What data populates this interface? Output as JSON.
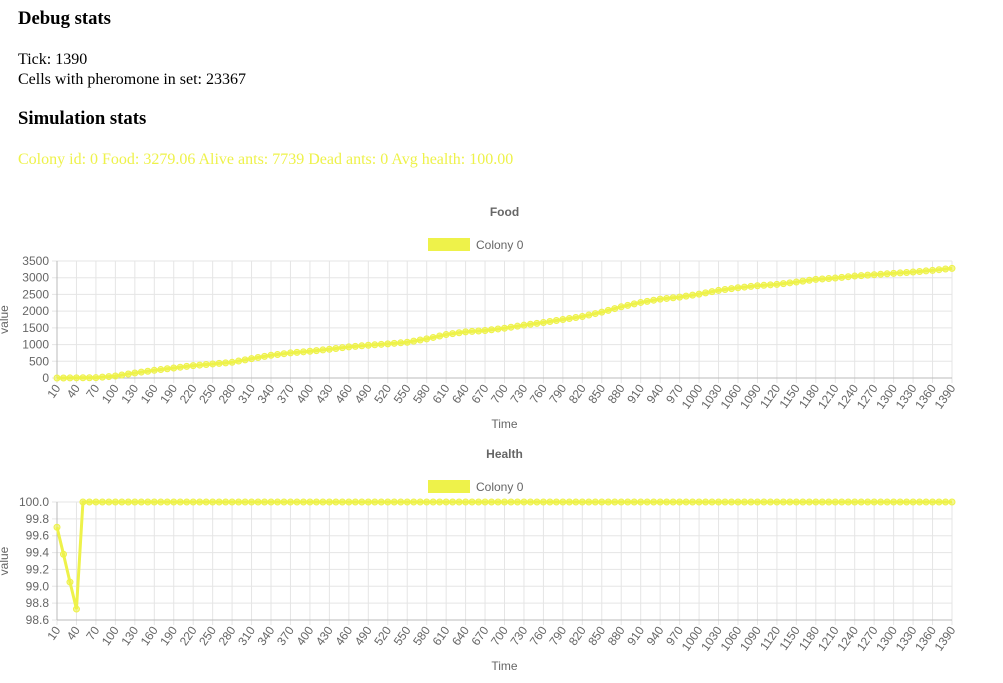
{
  "debug": {
    "heading": "Debug stats",
    "lines": [
      "Tick: 1390",
      "Cells with pheromone in set: 23367"
    ]
  },
  "simulation": {
    "heading": "Simulation stats",
    "stats": "Colony id: 0 Food: 3279.06 Alive ants: 7739 Dead ants: 0 Avg health: 100.00",
    "color": "#eef24a"
  },
  "chart_data": [
    {
      "type": "line",
      "title": "Food",
      "x_label": "Time",
      "y_label": "value",
      "grid": true,
      "legend": "top",
      "x": [
        10,
        20,
        30,
        40,
        50,
        60,
        70,
        80,
        90,
        100,
        110,
        120,
        130,
        140,
        150,
        160,
        170,
        180,
        190,
        200,
        210,
        220,
        230,
        240,
        250,
        260,
        270,
        280,
        290,
        300,
        310,
        320,
        330,
        340,
        350,
        360,
        370,
        380,
        390,
        400,
        410,
        420,
        430,
        440,
        450,
        460,
        470,
        480,
        490,
        500,
        510,
        520,
        530,
        540,
        550,
        560,
        570,
        580,
        590,
        600,
        610,
        620,
        630,
        640,
        650,
        660,
        670,
        680,
        690,
        700,
        710,
        720,
        730,
        740,
        750,
        760,
        770,
        780,
        790,
        800,
        810,
        820,
        830,
        840,
        850,
        860,
        870,
        880,
        890,
        900,
        910,
        920,
        930,
        940,
        950,
        960,
        970,
        980,
        990,
        1000,
        1010,
        1020,
        1030,
        1040,
        1050,
        1060,
        1070,
        1080,
        1090,
        1100,
        1110,
        1120,
        1130,
        1140,
        1150,
        1160,
        1170,
        1180,
        1190,
        1200,
        1210,
        1220,
        1230,
        1240,
        1250,
        1260,
        1270,
        1280,
        1290,
        1300,
        1310,
        1320,
        1330,
        1340,
        1350,
        1360,
        1370,
        1380,
        1390
      ],
      "xlim": [
        10,
        1390
      ],
      "xticks": [
        10,
        40,
        70,
        100,
        130,
        160,
        190,
        220,
        250,
        280,
        310,
        340,
        370,
        400,
        430,
        460,
        490,
        520,
        550,
        580,
        610,
        640,
        670,
        700,
        730,
        760,
        790,
        820,
        850,
        880,
        910,
        940,
        970,
        1000,
        1030,
        1060,
        1090,
        1120,
        1150,
        1180,
        1210,
        1240,
        1270,
        1300,
        1330,
        1360,
        1390
      ],
      "ylim": [
        0,
        3500
      ],
      "yticks": [
        0,
        500,
        1000,
        1500,
        2000,
        2500,
        3000,
        3500
      ],
      "series": [
        {
          "name": "Colony 0",
          "color": "#eef24a",
          "values": [
            0,
            0,
            2,
            5,
            7,
            8,
            10,
            27,
            43,
            60,
            90,
            120,
            150,
            177,
            203,
            230,
            253,
            277,
            300,
            323,
            347,
            370,
            387,
            403,
            420,
            437,
            453,
            470,
            507,
            543,
            580,
            613,
            647,
            680,
            703,
            727,
            750,
            767,
            783,
            800,
            820,
            840,
            860,
            883,
            907,
            930,
            947,
            963,
            980,
            993,
            1007,
            1020,
            1037,
            1053,
            1070,
            1103,
            1137,
            1170,
            1213,
            1257,
            1300,
            1327,
            1353,
            1380,
            1393,
            1407,
            1420,
            1443,
            1467,
            1490,
            1520,
            1550,
            1580,
            1607,
            1633,
            1660,
            1690,
            1720,
            1750,
            1780,
            1810,
            1840,
            1883,
            1927,
            1970,
            2023,
            2077,
            2130,
            2173,
            2217,
            2260,
            2293,
            2327,
            2360,
            2380,
            2400,
            2420,
            2450,
            2480,
            2510,
            2547,
            2583,
            2620,
            2647,
            2673,
            2700,
            2720,
            2740,
            2760,
            2773,
            2787,
            2800,
            2823,
            2847,
            2870,
            2897,
            2923,
            2950,
            2963,
            2977,
            2990,
            3010,
            3030,
            3050,
            3063,
            3077,
            3090,
            3103,
            3117,
            3130,
            3143,
            3157,
            3170,
            3187,
            3203,
            3220,
            3240,
            3260,
            3279
          ]
        }
      ]
    },
    {
      "type": "line",
      "title": "Health",
      "x_label": "Time",
      "y_label": "value",
      "grid": true,
      "legend": "top",
      "x": [
        10,
        20,
        30,
        40,
        50,
        60,
        70,
        80,
        90,
        100,
        110,
        120,
        130,
        140,
        150,
        160,
        170,
        180,
        190,
        200,
        210,
        220,
        230,
        240,
        250,
        260,
        270,
        280,
        290,
        300,
        310,
        320,
        330,
        340,
        350,
        360,
        370,
        380,
        390,
        400,
        410,
        420,
        430,
        440,
        450,
        460,
        470,
        480,
        490,
        500,
        510,
        520,
        530,
        540,
        550,
        560,
        570,
        580,
        590,
        600,
        610,
        620,
        630,
        640,
        650,
        660,
        670,
        680,
        690,
        700,
        710,
        720,
        730,
        740,
        750,
        760,
        770,
        780,
        790,
        800,
        810,
        820,
        830,
        840,
        850,
        860,
        870,
        880,
        890,
        900,
        910,
        920,
        930,
        940,
        950,
        960,
        970,
        980,
        990,
        1000,
        1010,
        1020,
        1030,
        1040,
        1050,
        1060,
        1070,
        1080,
        1090,
        1100,
        1110,
        1120,
        1130,
        1140,
        1150,
        1160,
        1170,
        1180,
        1190,
        1200,
        1210,
        1220,
        1230,
        1240,
        1250,
        1260,
        1270,
        1280,
        1290,
        1300,
        1310,
        1320,
        1330,
        1340,
        1350,
        1360,
        1370,
        1380,
        1390
      ],
      "xlim": [
        10,
        1390
      ],
      "xticks": [
        10,
        40,
        70,
        100,
        130,
        160,
        190,
        220,
        250,
        280,
        310,
        340,
        370,
        400,
        430,
        460,
        490,
        520,
        550,
        580,
        610,
        640,
        670,
        700,
        730,
        760,
        790,
        820,
        850,
        880,
        910,
        940,
        970,
        1000,
        1030,
        1060,
        1090,
        1120,
        1150,
        1180,
        1210,
        1240,
        1270,
        1300,
        1330,
        1360,
        1390
      ],
      "ylim": [
        98.6,
        100
      ],
      "yticks": [
        98.6,
        98.8,
        {
          "value": 99,
          "label": "99.0"
        },
        99.2,
        99.4,
        99.6,
        99.8,
        {
          "value": 100,
          "label": "100.0"
        }
      ],
      "series": [
        {
          "name": "Colony 0",
          "color": "#eef24a",
          "values": [
            99.7,
            99.38,
            99.05,
            98.73,
            100,
            100,
            100,
            100,
            100,
            100,
            100,
            100,
            100,
            100,
            100,
            100,
            100,
            100,
            100,
            100,
            100,
            100,
            100,
            100,
            100,
            100,
            100,
            100,
            100,
            100,
            100,
            100,
            100,
            100,
            100,
            100,
            100,
            100,
            100,
            100,
            100,
            100,
            100,
            100,
            100,
            100,
            100,
            100,
            100,
            100,
            100,
            100,
            100,
            100,
            100,
            100,
            100,
            100,
            100,
            100,
            100,
            100,
            100,
            100,
            100,
            100,
            100,
            100,
            100,
            100,
            100,
            100,
            100,
            100,
            100,
            100,
            100,
            100,
            100,
            100,
            100,
            100,
            100,
            100,
            100,
            100,
            100,
            100,
            100,
            100,
            100,
            100,
            100,
            100,
            100,
            100,
            100,
            100,
            100,
            100,
            100,
            100,
            100,
            100,
            100,
            100,
            100,
            100,
            100,
            100,
            100,
            100,
            100,
            100,
            100,
            100,
            100,
            100,
            100,
            100,
            100,
            100,
            100,
            100,
            100,
            100,
            100,
            100,
            100,
            100,
            100,
            100,
            100,
            100,
            100,
            100,
            100,
            100,
            100
          ]
        }
      ]
    }
  ]
}
